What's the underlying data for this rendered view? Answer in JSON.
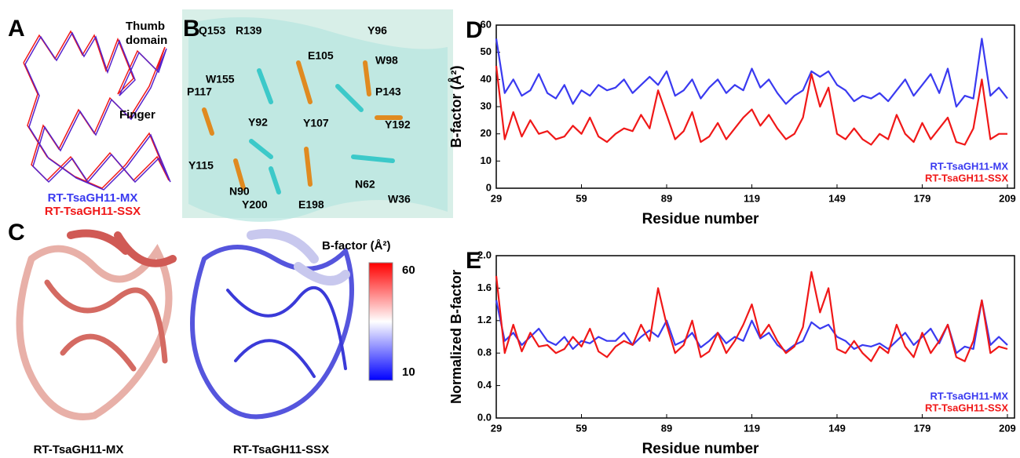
{
  "panels": {
    "A": {
      "label": "A",
      "thumb": [
        "Thumb",
        "domain"
      ],
      "finger": "Finger",
      "legend": [
        {
          "name": "RT-TsaGH11-MX",
          "color": "#3a3af0"
        },
        {
          "name": "RT-TsaGH11-SSX",
          "color": "#f01818"
        }
      ]
    },
    "B": {
      "label": "B",
      "residues": [
        "Q153",
        "R139",
        "Y96",
        "E105",
        "W98",
        "W155",
        "P117",
        "P143",
        "Y92",
        "Y107",
        "Y192",
        "Y115",
        "N90",
        "N62",
        "W36",
        "Y200",
        "E198"
      ]
    },
    "C": {
      "label": "C",
      "colorbar": {
        "title": "B-factor (Å²)",
        "max": 60,
        "min": 10
      },
      "captions": [
        "RT-TsaGH11-MX",
        "RT-TsaGH11-SSX"
      ]
    }
  },
  "chart_data": [
    {
      "type": "line",
      "panel_label": "D",
      "x_label": "Residue number",
      "y_label": "B-factor (Å²)",
      "x": [
        29,
        32,
        35,
        38,
        41,
        44,
        47,
        50,
        53,
        56,
        59,
        62,
        65,
        68,
        71,
        74,
        77,
        80,
        83,
        86,
        89,
        92,
        95,
        98,
        101,
        104,
        107,
        110,
        113,
        116,
        119,
        122,
        125,
        128,
        131,
        134,
        137,
        140,
        143,
        146,
        149,
        152,
        155,
        158,
        161,
        164,
        167,
        170,
        173,
        176,
        179,
        182,
        185,
        188,
        191,
        194,
        197,
        200,
        203,
        206,
        209
      ],
      "series": [
        {
          "name": "RT-TsaGH11-MX",
          "color": "#3a3af0",
          "values": [
            55,
            35,
            40,
            34,
            36,
            42,
            35,
            33,
            38,
            31,
            36,
            34,
            38,
            36,
            37,
            40,
            35,
            38,
            41,
            38,
            43,
            34,
            36,
            40,
            33,
            37,
            40,
            35,
            38,
            36,
            44,
            37,
            40,
            35,
            31,
            34,
            36,
            43,
            41,
            43,
            38,
            36,
            32,
            34,
            33,
            35,
            32,
            36,
            40,
            34,
            38,
            42,
            35,
            44,
            30,
            34,
            33,
            55,
            34,
            37,
            33
          ]
        },
        {
          "name": "RT-TsaGH11-SSX",
          "color": "#f01818",
          "values": [
            45,
            18,
            28,
            19,
            25,
            20,
            21,
            18,
            19,
            23,
            20,
            26,
            19,
            17,
            20,
            22,
            21,
            27,
            22,
            36,
            27,
            18,
            21,
            28,
            17,
            19,
            24,
            18,
            22,
            26,
            29,
            23,
            27,
            22,
            18,
            20,
            26,
            42,
            30,
            37,
            20,
            18,
            22,
            18,
            16,
            20,
            18,
            27,
            20,
            17,
            24,
            18,
            22,
            26,
            17,
            16,
            22,
            40,
            18,
            20,
            20
          ]
        }
      ],
      "xlim": [
        29,
        211.5
      ],
      "xticks": [
        29,
        59,
        89,
        119,
        149,
        179,
        209
      ],
      "ylim": [
        0,
        60
      ],
      "yticks": [
        0,
        10,
        20,
        30,
        40,
        50,
        60
      ],
      "legend": "lower right"
    },
    {
      "type": "line",
      "panel_label": "E",
      "x_label": "Residue number",
      "y_label": "Normalized B-factor",
      "x": [
        29,
        32,
        35,
        38,
        41,
        44,
        47,
        50,
        53,
        56,
        59,
        62,
        65,
        68,
        71,
        74,
        77,
        80,
        83,
        86,
        89,
        92,
        95,
        98,
        101,
        104,
        107,
        110,
        113,
        116,
        119,
        122,
        125,
        128,
        131,
        134,
        137,
        140,
        143,
        146,
        149,
        152,
        155,
        158,
        161,
        164,
        167,
        170,
        173,
        176,
        179,
        182,
        185,
        188,
        191,
        194,
        197,
        200,
        203,
        206,
        209
      ],
      "series": [
        {
          "name": "RT-TsaGH11-MX",
          "color": "#3a3af0",
          "values": [
            1.45,
            0.95,
            1.05,
            0.9,
            1.0,
            1.1,
            0.95,
            0.9,
            1.0,
            0.85,
            0.95,
            0.92,
            1.0,
            0.95,
            0.95,
            1.05,
            0.9,
            1.0,
            1.08,
            1.0,
            1.2,
            0.9,
            0.95,
            1.05,
            0.87,
            0.95,
            1.05,
            0.92,
            1.0,
            0.95,
            1.2,
            0.98,
            1.05,
            0.9,
            0.82,
            0.9,
            0.95,
            1.18,
            1.1,
            1.15,
            1.0,
            0.95,
            0.85,
            0.9,
            0.88,
            0.92,
            0.85,
            0.95,
            1.05,
            0.9,
            1.0,
            1.1,
            0.92,
            1.15,
            0.8,
            0.88,
            0.85,
            1.45,
            0.9,
            1.0,
            0.9
          ]
        },
        {
          "name": "RT-TsaGH11-SSX",
          "color": "#f01818",
          "values": [
            1.75,
            0.8,
            1.15,
            0.82,
            1.05,
            0.88,
            0.9,
            0.8,
            0.85,
            1.0,
            0.88,
            1.1,
            0.82,
            0.75,
            0.88,
            0.95,
            0.9,
            1.15,
            0.95,
            1.6,
            1.15,
            0.8,
            0.9,
            1.2,
            0.75,
            0.82,
            1.05,
            0.8,
            0.95,
            1.15,
            1.4,
            1.0,
            1.15,
            0.95,
            0.8,
            0.88,
            1.12,
            1.8,
            1.3,
            1.6,
            0.85,
            0.8,
            0.95,
            0.8,
            0.7,
            0.88,
            0.8,
            1.15,
            0.88,
            0.75,
            1.05,
            0.8,
            0.95,
            1.15,
            0.75,
            0.7,
            0.95,
            1.45,
            0.8,
            0.88,
            0.85
          ]
        }
      ],
      "xlim": [
        29,
        211.5
      ],
      "xticks": [
        29,
        59,
        89,
        119,
        149,
        179,
        209
      ],
      "ylim": [
        0,
        2
      ],
      "yticks": [
        {
          "value": 0,
          "label": "0.0"
        },
        0.4,
        0.8,
        1.2,
        1.6,
        {
          "value": 2,
          "label": "2.0"
        }
      ],
      "legend": "lower right"
    }
  ]
}
